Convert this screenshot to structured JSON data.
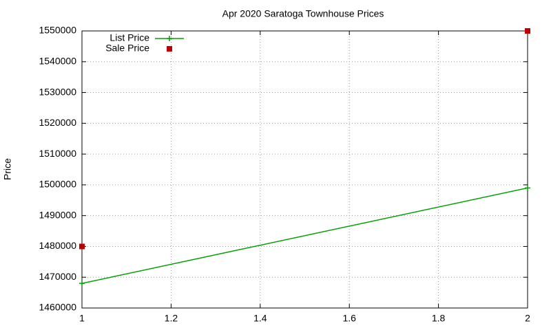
{
  "chart_data": {
    "type": "line",
    "title": "Apr 2020 Saratoga Townhouse Prices",
    "y_label": "Price",
    "x": [
      1,
      2
    ],
    "series": [
      {
        "name": "List Price",
        "color": "#00a000",
        "style": "linespoints",
        "values": [
          1468000,
          1499000
        ]
      },
      {
        "name": "Sale Price",
        "color": "#c00000",
        "style": "points",
        "values": [
          1480000,
          1550000
        ]
      }
    ],
    "xlim": [
      1,
      2
    ],
    "xticks": [
      1,
      1.2,
      1.4,
      1.6,
      1.8,
      2
    ],
    "ylim": [
      1460000,
      1550000
    ],
    "yticks": [
      1460000,
      1470000,
      1480000,
      1490000,
      1500000,
      1510000,
      1520000,
      1530000,
      1540000,
      1550000
    ],
    "grid": true,
    "legend": "top-left"
  }
}
